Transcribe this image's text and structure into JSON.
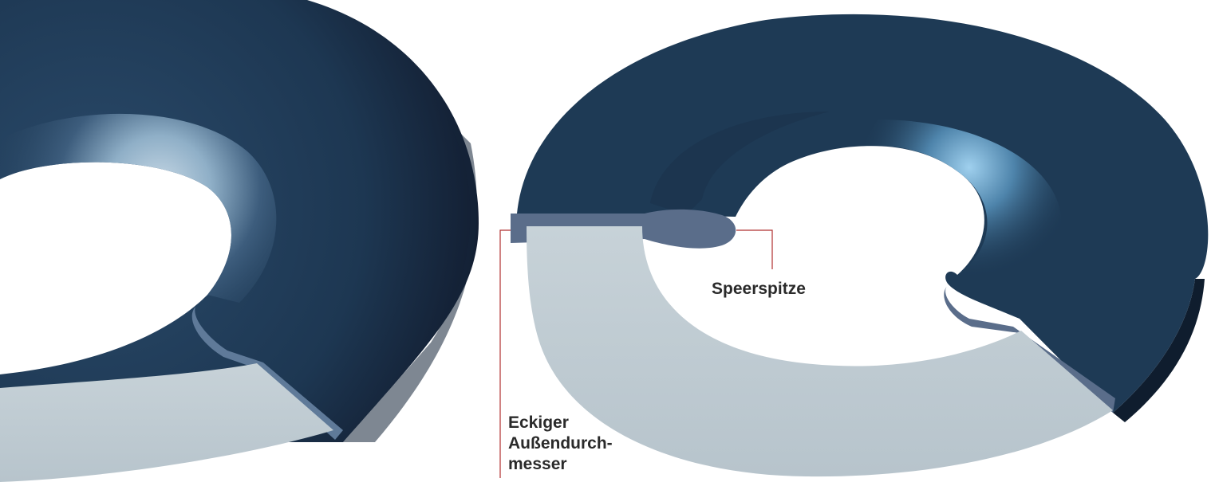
{
  "labels": {
    "speerspitze": "Speerspitze",
    "eckiger_line1": "Eckiger",
    "eckiger_line2": "Außendurch-",
    "eckiger_line3": "messer"
  },
  "colors": {
    "ring_surface": "#1e3a55",
    "ring_dark": "#152a40",
    "ring_highlight": "#a9c6dc",
    "cut_face": "#c1ccd3",
    "cross_section": "#5b6e8a",
    "callout_line": "#b03030",
    "label_text": "#2a2a2a"
  }
}
